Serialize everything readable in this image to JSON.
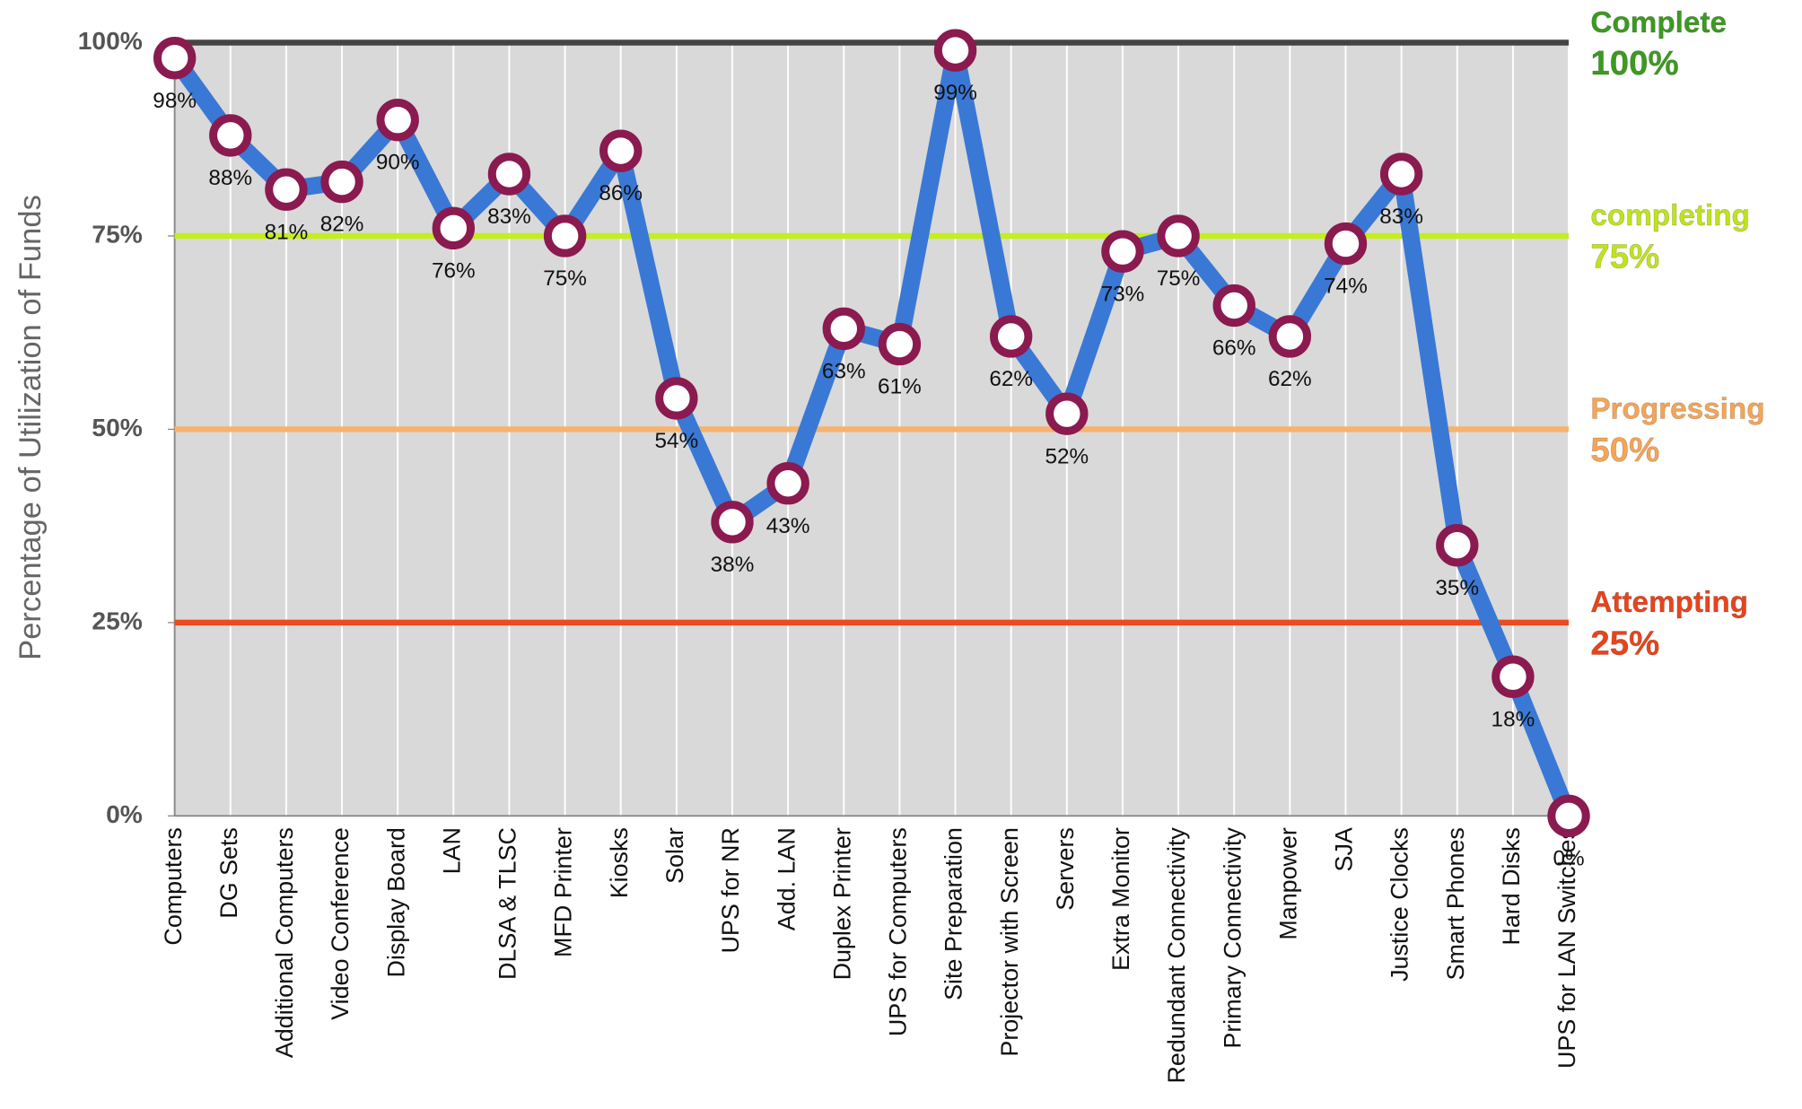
{
  "chart_data": {
    "type": "line",
    "y_label": "Percentage of Utilization of Funds",
    "categories": [
      "Computers",
      "DG Sets",
      "Additional Computers",
      "Video Conference",
      "Display Board",
      "LAN",
      "DLSA & TLSC",
      "MFD Printer",
      "Kiosks",
      "Solar",
      "UPS for NR",
      "Add. LAN",
      "Duplex Printer",
      "UPS for Computers",
      "Site Preparation",
      "Projector with Screen",
      "Servers",
      "Extra Monitor",
      "Redundant Connectivity",
      "Primary Connectivity",
      "Manpower",
      "SJA",
      "Justice Clocks",
      "Smart Phones",
      "Hard Disks",
      "UPS for LAN Switches"
    ],
    "values": [
      98,
      88,
      81,
      82,
      90,
      76,
      83,
      75,
      86,
      54,
      38,
      43,
      63,
      61,
      99,
      62,
      52,
      73,
      75,
      66,
      62,
      74,
      83,
      35,
      18,
      0
    ],
    "value_labels": [
      "98%",
      "88%",
      "81%",
      "82%",
      "90%",
      "76%",
      "83%",
      "75%",
      "86%",
      "54%",
      "38%",
      "43%",
      "63%",
      "61%",
      "99%",
      "62%",
      "52%",
      "73%",
      "75%",
      "66%",
      "62%",
      "74%",
      "83%",
      "35%",
      "18%",
      "0%"
    ],
    "color": "#3a78d6",
    "ylim": [
      0,
      100
    ],
    "yticks": [
      {
        "value": 0,
        "label": "0%"
      },
      {
        "value": 25,
        "label": "25%"
      },
      {
        "value": 50,
        "label": "50%"
      },
      {
        "value": 75,
        "label": "75%"
      },
      {
        "value": 100,
        "label": "100%"
      }
    ],
    "grid": true,
    "thresholds": [
      {
        "name": "Complete",
        "value": 100,
        "label": "100%",
        "color": "#444444",
        "text_color": "#3c9a1f"
      },
      {
        "name": "completing",
        "value": 75,
        "label": "75%",
        "color": "#c4ee1c",
        "text_color": "#bfe41c"
      },
      {
        "name": "Progressing",
        "value": 50,
        "label": "50%",
        "color": "#f7b36d",
        "text_color": "#f5a556"
      },
      {
        "name": "Attempting",
        "value": 25,
        "label": "25%",
        "color": "#ee4a1f",
        "text_color": "#e8441c"
      }
    ]
  }
}
